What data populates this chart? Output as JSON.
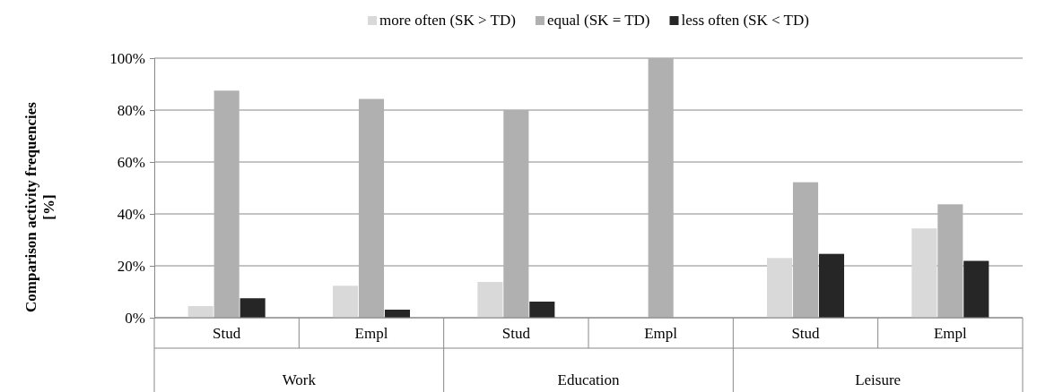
{
  "chart_data": {
    "type": "bar",
    "ylabel": "Comparison activity frequencies [%]",
    "categories": [
      "Stud",
      "Empl",
      "Stud",
      "Empl",
      "Stud",
      "Empl"
    ],
    "annotations": [
      "Work",
      "Education",
      "Leisure"
    ],
    "series": [
      {
        "name": "more often (SK > TD)",
        "color": "#d9d9d9",
        "values": [
          4.5,
          12.3,
          13.8,
          0,
          23,
          34.4
        ]
      },
      {
        "name": "equal (SK = TD)",
        "color": "#b0b0b0",
        "values": [
          87.5,
          84.3,
          80,
          100,
          52.2,
          43.7
        ]
      },
      {
        "name": "less often (SK < TD)",
        "color": "#262626",
        "values": [
          7.5,
          3.1,
          6.2,
          0,
          24.6,
          21.9
        ]
      }
    ],
    "ylim": [
      0,
      100
    ],
    "yticks": [
      {
        "value": 0,
        "label": "0%"
      },
      {
        "value": 20,
        "label": "20%"
      },
      {
        "value": 40,
        "label": "40%"
      },
      {
        "value": 60,
        "label": "60%"
      },
      {
        "value": 80,
        "label": "80%"
      },
      {
        "value": 100,
        "label": "100%"
      }
    ],
    "grid": "y",
    "legend": "top"
  }
}
